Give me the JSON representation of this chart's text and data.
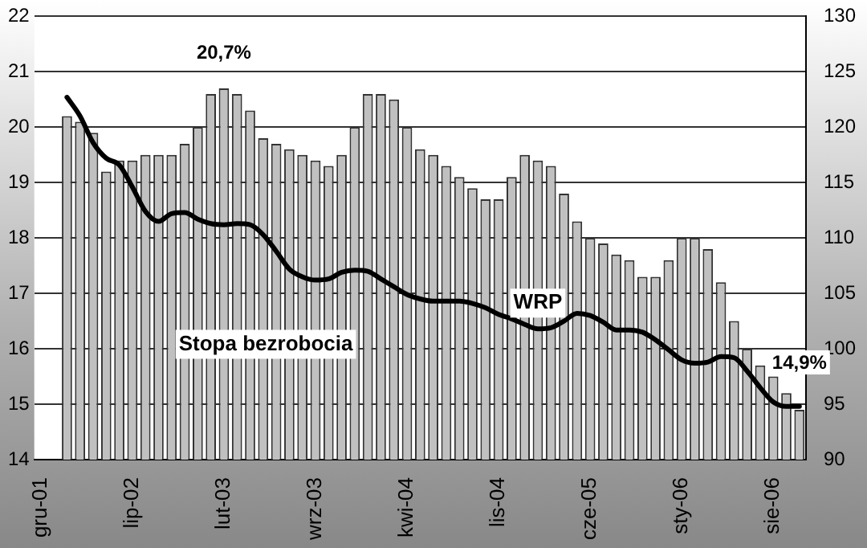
{
  "chart_data": {
    "type": "bar",
    "categories": [
      "gru-01",
      null,
      null,
      null,
      null,
      null,
      null,
      "lip-02",
      null,
      null,
      null,
      null,
      null,
      null,
      "lut-03",
      null,
      null,
      null,
      null,
      null,
      null,
      "wrz-03",
      null,
      null,
      null,
      null,
      null,
      null,
      "kwi-04",
      null,
      null,
      null,
      null,
      null,
      null,
      "lis-04",
      null,
      null,
      null,
      null,
      null,
      null,
      "cze-05",
      null,
      null,
      null,
      null,
      null,
      null,
      "sty-06",
      null,
      null,
      null,
      null,
      null,
      null,
      "sie-06",
      null,
      null
    ],
    "series": [
      {
        "name": "Stopa bezrobocia",
        "type": "bar",
        "color": "#c0c0c0",
        "values": [
          null,
          null,
          20.2,
          20.1,
          19.9,
          19.2,
          19.4,
          19.4,
          19.5,
          19.5,
          19.5,
          19.7,
          20.0,
          20.6,
          20.7,
          20.6,
          20.3,
          19.8,
          19.7,
          19.6,
          19.5,
          19.4,
          19.3,
          19.5,
          20.0,
          20.6,
          20.6,
          20.5,
          20.0,
          19.6,
          19.5,
          19.3,
          19.1,
          18.9,
          18.7,
          18.7,
          19.1,
          19.5,
          19.4,
          19.3,
          18.8,
          18.3,
          18.0,
          17.9,
          17.7,
          17.6,
          17.3,
          17.3,
          17.6,
          18.0,
          18.0,
          17.8,
          17.2,
          16.5,
          16.0,
          15.7,
          15.5,
          15.2,
          14.9
        ],
        "value_labels": [
          null,
          null,
          null,
          null,
          null,
          null,
          null,
          null,
          null,
          null,
          null,
          null,
          null,
          null,
          "20,7%",
          null,
          null,
          null,
          null,
          null,
          null,
          null,
          null,
          null,
          null,
          null,
          null,
          null,
          null,
          null,
          null,
          null,
          null,
          null,
          null,
          null,
          null,
          null,
          null,
          null,
          null,
          null,
          null,
          null,
          null,
          null,
          null,
          null,
          null,
          null,
          null,
          null,
          null,
          null,
          null,
          null,
          null,
          null,
          "14,9%"
        ]
      },
      {
        "name": "WRP",
        "type": "line",
        "axis": "y2",
        "color": "#000000",
        "values": [
          null,
          null,
          122.7,
          121.0,
          118.6,
          117.2,
          116.6,
          114.6,
          112.4,
          111.5,
          112.2,
          112.3,
          111.7,
          111.3,
          111.2,
          111.3,
          111.2,
          110.3,
          108.8,
          107.2,
          106.5,
          106.2,
          106.3,
          106.9,
          107.1,
          107.0,
          106.3,
          105.6,
          104.9,
          104.5,
          104.3,
          104.3,
          104.3,
          104.1,
          103.7,
          103.1,
          102.7,
          102.2,
          101.8,
          101.9,
          102.5,
          103.2,
          103.0,
          102.4,
          101.7,
          101.7,
          101.5,
          100.8,
          99.9,
          99.0,
          98.7,
          98.8,
          99.3,
          99.2,
          98.0,
          96.5,
          95.2,
          94.8,
          94.8
        ]
      }
    ],
    "ylim": [
      14,
      22
    ],
    "yticks": [
      14,
      15,
      16,
      17,
      18,
      19,
      20,
      21,
      22
    ],
    "y2lim": [
      90,
      130
    ],
    "y2ticks": [
      90,
      95,
      100,
      105,
      110,
      115,
      120,
      125,
      130
    ],
    "grid": "y",
    "marker": "none",
    "line_style": "solid"
  }
}
